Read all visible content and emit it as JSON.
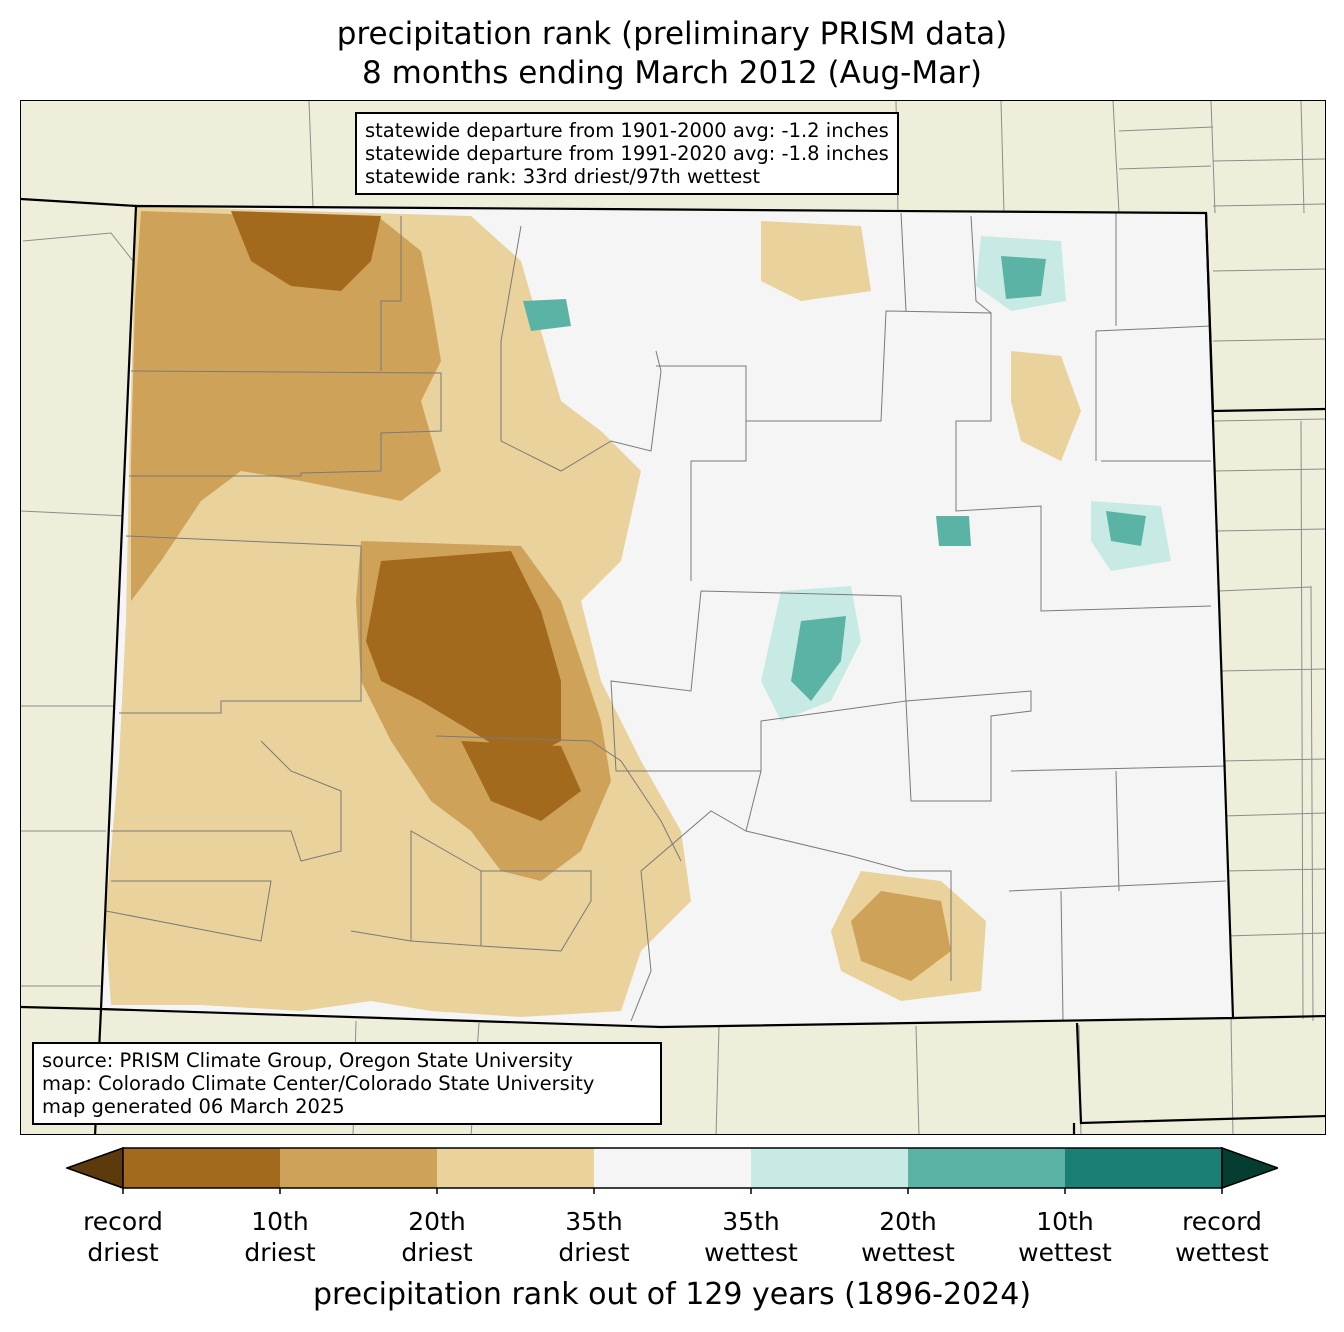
{
  "title": {
    "line1": "precipitation rank (preliminary PRISM data)",
    "line2": "8 months ending March 2012 (Aug-Mar)"
  },
  "stats": {
    "line1": "statewide departure from 1901-2000 avg: -1.2 inches",
    "line2": "statewide departure from 1991-2020 avg: -1.8 inches",
    "line3": "statewide rank: 33rd driest/97th wettest"
  },
  "source": {
    "line1": "source: PRISM Climate Group, Oregon State University",
    "line2": "map: Colorado Climate Center/Colorado State University",
    "line3": "map generated 06 March 2025"
  },
  "colorbar": {
    "label": "precipitation rank out of 129 years (1896-2024)",
    "colors": [
      "#5c3a0b",
      "#a36a1e",
      "#cfa25a",
      "#e9d29b",
      "#f4f5f4",
      "#c7ebe4",
      "#5bb3a6",
      "#1a7f74",
      "#063d31"
    ],
    "ticks": [
      {
        "line1": "record",
        "line2": "driest"
      },
      {
        "line1": "10th",
        "line2": "driest"
      },
      {
        "line1": "20th",
        "line2": "driest"
      },
      {
        "line1": "35th",
        "line2": "driest"
      },
      {
        "line1": "35th",
        "line2": "wettest"
      },
      {
        "line1": "20th",
        "line2": "wettest"
      },
      {
        "line1": "10th",
        "line2": "wettest"
      },
      {
        "line1": "record",
        "line2": "wettest"
      }
    ]
  },
  "map": {
    "background_color": "#efeedb",
    "state_fill": "#f4f5f4",
    "region": "Colorado"
  }
}
